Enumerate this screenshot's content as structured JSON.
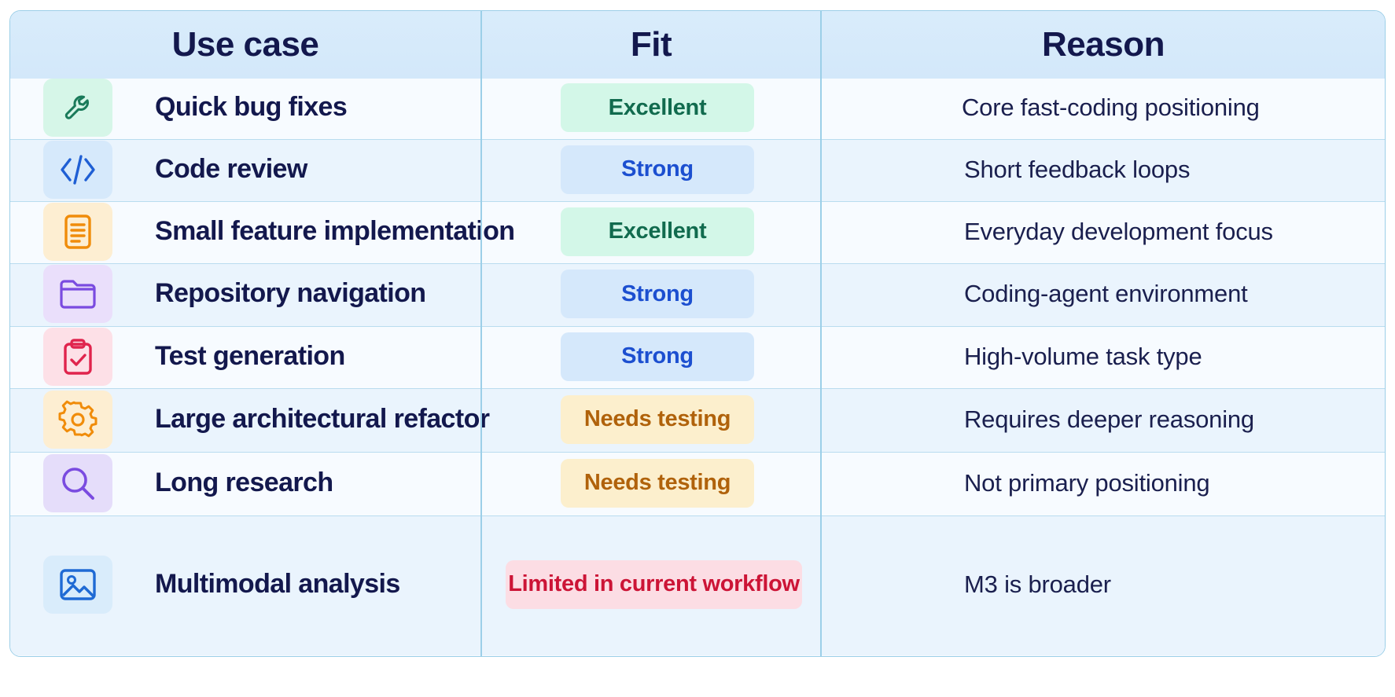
{
  "headers": {
    "use_case": "Use case",
    "fit": "Fit",
    "reason": "Reason"
  },
  "rows": [
    {
      "use_case": "Quick bug fixes",
      "fit": "Excellent",
      "fit_level": "excellent",
      "reason": "Core fast-coding positioning",
      "icon": "wrench-icon",
      "icon_color": "#1a7a5a",
      "tile_color": "#d6f6e8"
    },
    {
      "use_case": "Code review",
      "fit": "Strong",
      "fit_level": "strong",
      "reason": "Short feedback loops",
      "icon": "code-icon",
      "icon_color": "#1f5fd4",
      "tile_color": "#d6e9fb"
    },
    {
      "use_case": "Small feature implementation",
      "fit": "Excellent",
      "fit_level": "excellent",
      "reason": "Everyday development focus",
      "icon": "document-icon",
      "icon_color": "#f08c0a",
      "tile_color": "#fdeed2"
    },
    {
      "use_case": "Repository navigation",
      "fit": "Strong",
      "fit_level": "strong",
      "reason": "Coding-agent environment",
      "icon": "folder-icon",
      "icon_color": "#7a4be0",
      "tile_color": "#eadffb"
    },
    {
      "use_case": "Test generation",
      "fit": "Strong",
      "fit_level": "strong",
      "reason": "High-volume task type",
      "icon": "clipboard-check-icon",
      "icon_color": "#e0244d",
      "tile_color": "#fde0e7"
    },
    {
      "use_case": "Large architectural refactor",
      "fit": "Needs testing",
      "fit_level": "testing",
      "reason": "Requires deeper reasoning",
      "icon": "gear-icon",
      "icon_color": "#f08c0a",
      "tile_color": "#fdeed2"
    },
    {
      "use_case": "Long research",
      "fit": "Needs testing",
      "fit_level": "testing",
      "reason": "Not primary positioning",
      "icon": "search-icon",
      "icon_color": "#7a4be0",
      "tile_color": "#e5ddfa"
    },
    {
      "use_case": "Multimodal analysis",
      "fit": "Limited in current workflow",
      "fit_level": "limited",
      "reason": "M3 is broader",
      "icon": "image-icon",
      "icon_color": "#1f6ad4",
      "tile_color": "#d9ecfb"
    }
  ]
}
